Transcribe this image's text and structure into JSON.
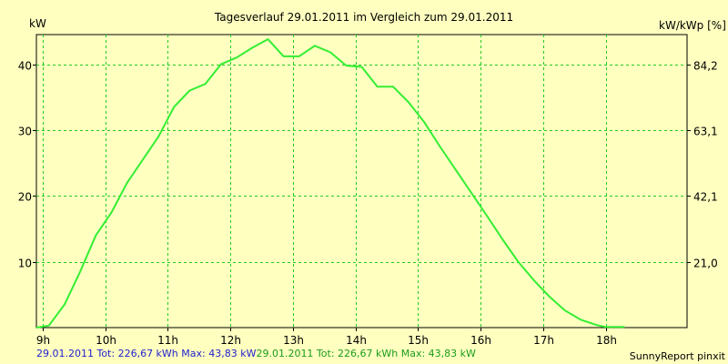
{
  "chart_data": {
    "type": "line",
    "title": "Tagesverlauf 29.01.2011 im Vergleich zum 29.01.2011",
    "ylabel_left": "kW",
    "ylabel_right": "kW/kWp [%]",
    "x_ticks": [
      "9h",
      "10h",
      "11h",
      "12h",
      "13h",
      "14h",
      "15h",
      "16h",
      "17h",
      "18h"
    ],
    "y_ticks_left": [
      10,
      20,
      30,
      40
    ],
    "y_ticks_right": [
      "21,0",
      "42,1",
      "63,1",
      "84,2"
    ],
    "xlim": [
      8.9,
      19.3
    ],
    "ylim": [
      0,
      44.5
    ],
    "grid": true,
    "line_color": "#33ee33",
    "series": [
      {
        "x": [
          8.9,
          9.1,
          9.35,
          9.6,
          9.85,
          10.1,
          10.35,
          10.6,
          10.85,
          11.1,
          11.35,
          11.6,
          11.85,
          12.1,
          12.35,
          12.6,
          12.85,
          13.1,
          13.35,
          13.6,
          13.85,
          14.1,
          14.35,
          14.6,
          14.85,
          15.1,
          15.35,
          15.6,
          15.85,
          16.1,
          16.35,
          16.6,
          16.85,
          17.1,
          17.35,
          17.6,
          17.85,
          18.0,
          18.3
        ],
        "y": [
          0,
          0.3,
          3.5,
          8.5,
          14,
          17.5,
          22,
          25.5,
          29,
          33.5,
          36,
          37,
          40,
          41,
          42.5,
          43.8,
          41.2,
          41.2,
          42.8,
          41.8,
          39.8,
          39.6,
          36.6,
          36.6,
          34.2,
          31.2,
          27.5,
          24,
          20.5,
          17,
          13.4,
          10,
          7.2,
          4.7,
          2.6,
          1.2,
          0.4,
          0.1,
          0.1
        ]
      }
    ],
    "footer_blue": "29.01.2011 Tot: 226,67 kWh Max: 43,83 kW",
    "footer_green": "29.01.2011 Tot: 226,67 kWh Max: 43,83 kW",
    "credit": "SunnyReport pinxit"
  }
}
